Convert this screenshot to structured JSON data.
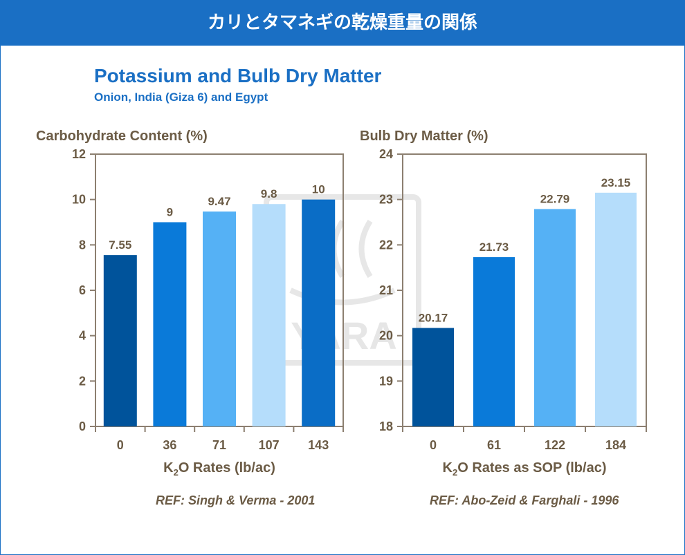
{
  "header": {
    "title": "カリとタマネギの乾燥重量の関係"
  },
  "title": "Potassium and Bulb Dry Matter",
  "subtitle": "Onion, India (Giza 6) and Egypt",
  "watermark": {
    "text": "YARA"
  },
  "colors": {
    "header_bg": "#1a6fc4",
    "title_text": "#1a6fc4",
    "axis_text": "#6b5b45",
    "axis_line": "#8c7f70",
    "bars": [
      "#00539b",
      "#0a7ad9",
      "#55b1f5",
      "#b5ddfb",
      "#0a6dc6"
    ]
  },
  "chart_data": [
    {
      "type": "bar",
      "ylabel": "Carbohydrate Content (%)",
      "xlabel_parts": [
        "K",
        "2",
        "O Rates (lb/ac)"
      ],
      "categories": [
        "0",
        "36",
        "71",
        "107",
        "143"
      ],
      "values": [
        7.55,
        9,
        9.47,
        9.8,
        10
      ],
      "value_labels": [
        "7.55",
        "9",
        "9.47",
        "9.8",
        "10"
      ],
      "ylim": [
        0,
        12
      ],
      "yticks": [
        0,
        2,
        4,
        6,
        8,
        10,
        12
      ],
      "grid": false,
      "ref": "REF: Singh & Verma -  2001"
    },
    {
      "type": "bar",
      "ylabel": "Bulb Dry Matter (%)",
      "xlabel_parts": [
        "K",
        "2",
        "O Rates as SOP (lb/ac)"
      ],
      "categories": [
        "0",
        "61",
        "122",
        "184"
      ],
      "values": [
        20.17,
        21.73,
        22.79,
        23.15
      ],
      "value_labels": [
        "20.17",
        "21.73",
        "22.79",
        "23.15"
      ],
      "ylim": [
        18,
        24
      ],
      "yticks": [
        18,
        19,
        20,
        21,
        22,
        23,
        24
      ],
      "grid": false,
      "ref": "REF: Abo-Zeid & Farghali - 1996"
    }
  ]
}
